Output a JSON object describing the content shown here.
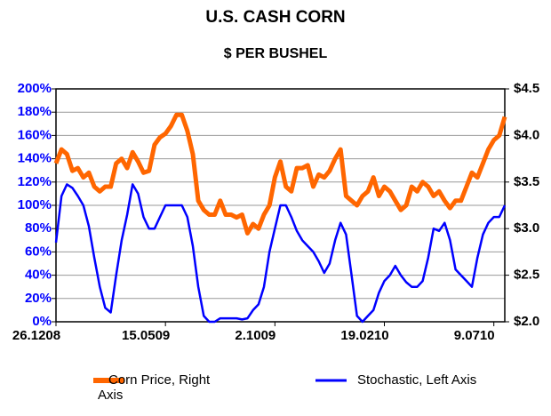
{
  "chart_data": {
    "type": "line",
    "title": "U.S. CASH CORN",
    "subtitle": "$ PER BUSHEL",
    "categories": [
      "26.1208",
      null,
      null,
      null,
      null,
      null,
      null,
      null,
      null,
      null,
      null,
      null,
      null,
      null,
      null,
      null,
      null,
      null,
      null,
      null,
      "15.0509",
      null,
      null,
      null,
      null,
      null,
      null,
      null,
      null,
      null,
      null,
      null,
      null,
      null,
      null,
      null,
      null,
      null,
      null,
      null,
      "2.1009",
      null,
      null,
      null,
      null,
      null,
      null,
      null,
      null,
      null,
      null,
      null,
      null,
      null,
      null,
      null,
      null,
      null,
      null,
      null,
      "19.0210",
      null,
      null,
      null,
      null,
      null,
      null,
      null,
      null,
      null,
      null,
      null,
      null,
      null,
      null,
      null,
      null,
      null,
      null,
      null,
      "9.0710",
      null,
      null
    ],
    "series": [
      {
        "name": "Corn Price, Right Axis",
        "color": "#ff6600",
        "axis": "y2",
        "values": [
          3.7,
          3.85,
          3.8,
          3.62,
          3.65,
          3.55,
          3.6,
          3.45,
          3.4,
          3.45,
          3.45,
          3.7,
          3.75,
          3.65,
          3.82,
          3.72,
          3.6,
          3.62,
          3.9,
          3.98,
          4.02,
          4.1,
          4.22,
          4.22,
          4.05,
          3.8,
          3.3,
          3.2,
          3.15,
          3.15,
          3.3,
          3.15,
          3.15,
          3.12,
          3.15,
          2.95,
          3.05,
          3.0,
          3.15,
          3.25,
          3.55,
          3.72,
          3.45,
          3.4,
          3.65,
          3.65,
          3.68,
          3.45,
          3.58,
          3.55,
          3.62,
          3.75,
          3.85,
          3.35,
          3.3,
          3.25,
          3.35,
          3.4,
          3.55,
          3.35,
          3.45,
          3.4,
          3.3,
          3.2,
          3.25,
          3.45,
          3.4,
          3.5,
          3.45,
          3.35,
          3.4,
          3.3,
          3.22,
          3.3,
          3.3,
          3.45,
          3.6,
          3.55,
          3.7,
          3.85,
          3.95,
          4.0,
          4.2
        ]
      },
      {
        "name": "Stochastic, Left Axis",
        "color": "#0000ff",
        "values": [
          68,
          108,
          118,
          115,
          108,
          100,
          82,
          55,
          30,
          12,
          8,
          40,
          70,
          92,
          118,
          110,
          90,
          80,
          80,
          90,
          100,
          100,
          100,
          100,
          90,
          65,
          30,
          5,
          0,
          0,
          3,
          3,
          3,
          3,
          2,
          3,
          10,
          15,
          30,
          60,
          80,
          100,
          100,
          90,
          78,
          70,
          65,
          60,
          52,
          42,
          50,
          70,
          85,
          75,
          40,
          5,
          0,
          5,
          10,
          25,
          35,
          40,
          48,
          40,
          34,
          30,
          30,
          35,
          55,
          80,
          78,
          85,
          70,
          45,
          40,
          35,
          30,
          55,
          75,
          85,
          90,
          90,
          100
        ]
      }
    ],
    "ylim": [
      0,
      200
    ],
    "yticks": [
      {
        "value": 0,
        "label": "0%"
      },
      {
        "value": 20,
        "label": "20%"
      },
      {
        "value": 40,
        "label": "40%"
      },
      {
        "value": 60,
        "label": "60%"
      },
      {
        "value": 80,
        "label": "80%"
      },
      {
        "value": 100,
        "label": "100%"
      },
      {
        "value": 120,
        "label": "120%"
      },
      {
        "value": 140,
        "label": "140%"
      },
      {
        "value": 160,
        "label": "160%"
      },
      {
        "value": 180,
        "label": "180%"
      },
      {
        "value": 200,
        "label": "200%"
      }
    ],
    "y2lim": [
      2.0,
      4.5
    ],
    "y2ticks": [
      {
        "value": 2.0,
        "label": "$2.0"
      },
      {
        "value": 2.5,
        "label": "$2.5"
      },
      {
        "value": 3.0,
        "label": "$3.0"
      },
      {
        "value": 3.5,
        "label": "$3.5"
      },
      {
        "value": 4.0,
        "label": "$4.0"
      },
      {
        "value": 4.5,
        "label": "$4.5"
      }
    ],
    "grid": true,
    "legend": "bottom"
  }
}
